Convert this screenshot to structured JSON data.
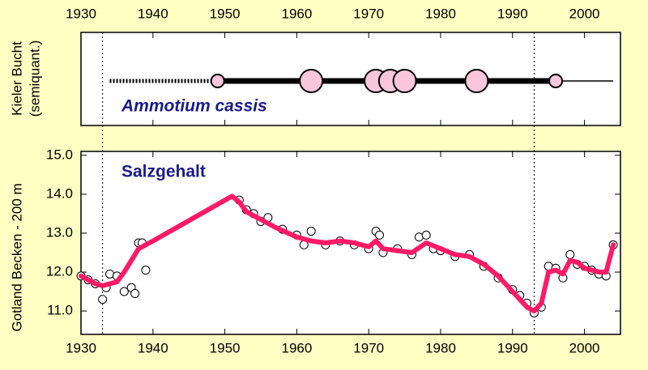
{
  "chart_data": [
    {
      "type": "bubble",
      "ylabel": [
        "Kieler Bucht",
        "(semiquant.)"
      ],
      "annotation": "Ammotium cassis",
      "x": [
        1949,
        1962,
        1971,
        1973,
        1975,
        1985,
        1996
      ],
      "sizes": [
        1,
        2,
        2,
        2,
        2,
        2,
        1
      ],
      "color": "#f9c6dc",
      "ranges": [
        {
          "style": "dotted",
          "x": [
            1934,
            1948
          ]
        },
        {
          "style": "thick",
          "x": [
            1949,
            1996
          ]
        },
        {
          "style": "thin",
          "x": [
            1996,
            2004
          ]
        }
      ],
      "xlim": [
        1930,
        2005
      ],
      "xticks": [
        1930,
        1940,
        1950,
        1960,
        1970,
        1980,
        1990,
        2000
      ],
      "vlines": [
        1933,
        1993
      ]
    },
    {
      "type": "scatter-line",
      "ylabel": "Gotland Becken - 200 m",
      "annotation": "Salzgehalt",
      "xlim": [
        1930,
        2005
      ],
      "xticks": [
        1930,
        1940,
        1950,
        1960,
        1970,
        1980,
        1990,
        2000
      ],
      "ylim": [
        10.4,
        15.1
      ],
      "yticks": [
        {
          "value": 11,
          "label": "11.0"
        },
        {
          "value": 12,
          "label": "12.0"
        },
        {
          "value": 13,
          "label": "13.0"
        },
        {
          "value": 14,
          "label": "14.0"
        },
        {
          "value": 15,
          "label": "15.0"
        }
      ],
      "points": {
        "x": [
          1930,
          1931,
          1932,
          1933,
          1933.5,
          1934,
          1935,
          1936,
          1937,
          1937.5,
          1938,
          1938.5,
          1939,
          1952,
          1953,
          1954,
          1955,
          1956,
          1958,
          1960,
          1961,
          1962,
          1964,
          1966,
          1968,
          1970,
          1971,
          1971.5,
          1972,
          1974,
          1976,
          1977,
          1978,
          1979,
          1980,
          1982,
          1984,
          1986,
          1988,
          1990,
          1991,
          1992,
          1993,
          1994,
          1995,
          1996,
          1997,
          1998,
          1999,
          2000,
          2001,
          2002,
          2003,
          2004
        ],
        "y": [
          11.9,
          11.8,
          11.7,
          11.3,
          11.6,
          11.95,
          11.9,
          11.5,
          11.6,
          11.45,
          12.75,
          12.75,
          12.05,
          13.85,
          13.6,
          13.5,
          13.3,
          13.4,
          13.1,
          12.95,
          12.7,
          13.05,
          12.7,
          12.8,
          12.7,
          12.6,
          13.05,
          12.95,
          12.5,
          12.6,
          12.45,
          12.9,
          12.95,
          12.6,
          12.55,
          12.4,
          12.45,
          12.15,
          11.85,
          11.55,
          11.4,
          11.2,
          10.95,
          11.1,
          12.15,
          12.1,
          11.85,
          12.45,
          12.2,
          12.15,
          12.05,
          11.95,
          11.9,
          12.7
        ]
      },
      "series": {
        "color": "#ff1a66",
        "x": [
          1930,
          1931,
          1932,
          1933,
          1934,
          1935,
          1936,
          1937,
          1938,
          1940,
          1951,
          1952,
          1953,
          1955,
          1957,
          1960,
          1962,
          1964,
          1966,
          1968,
          1970,
          1971,
          1972,
          1974,
          1976,
          1978,
          1980,
          1982,
          1984,
          1986,
          1988,
          1990,
          1992,
          1993,
          1994,
          1995,
          1996,
          1997,
          1998,
          1999,
          2000,
          2002,
          2003,
          2004
        ],
        "y": [
          11.9,
          11.8,
          11.7,
          11.65,
          11.7,
          11.75,
          12.0,
          12.3,
          12.6,
          12.8,
          13.95,
          13.8,
          13.55,
          13.35,
          13.15,
          12.9,
          12.8,
          12.75,
          12.8,
          12.75,
          12.65,
          12.8,
          12.6,
          12.55,
          12.5,
          12.75,
          12.6,
          12.45,
          12.4,
          12.2,
          11.9,
          11.5,
          11.1,
          11.0,
          11.2,
          12.0,
          12.05,
          11.95,
          12.3,
          12.25,
          12.1,
          12.0,
          12.0,
          12.7
        ]
      }
    }
  ]
}
